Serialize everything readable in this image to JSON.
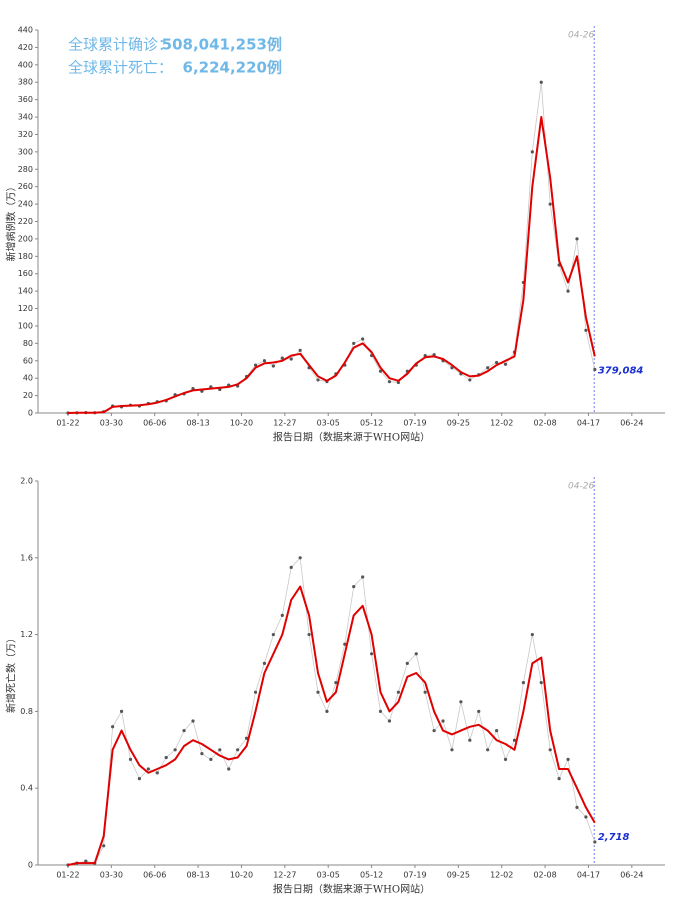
{
  "chart_data": [
    {
      "type": "line",
      "summary": [
        {
          "label": "全球累计确诊：",
          "value": "508,041,253例"
        },
        {
          "label": "全球累计死亡：",
          "value": "6,224,220例"
        }
      ],
      "ylabel": "新增病例数（万）",
      "xlabel": "报告日期（数据来源于WHO网站）",
      "x": [
        0,
        14,
        28,
        42,
        56,
        70,
        84,
        98,
        112,
        126,
        140,
        154,
        168,
        182,
        196,
        210,
        224,
        238,
        252,
        266,
        280,
        294,
        308,
        322,
        336,
        350,
        364,
        378,
        392,
        406,
        420,
        434,
        448,
        462,
        476,
        490,
        504,
        518,
        532,
        546,
        560,
        574,
        588,
        602,
        616,
        630,
        644,
        658,
        672,
        686,
        700,
        714,
        728,
        742,
        756,
        770,
        784,
        798,
        812,
        826
      ],
      "series": [
        {
          "style": "points",
          "color": "#555555",
          "values": [
            0,
            0.2,
            0.4,
            0.3,
            1.5,
            8,
            7,
            9,
            8,
            11,
            13,
            14,
            21,
            22,
            28,
            25,
            30,
            27,
            32,
            31,
            42,
            55,
            60,
            54,
            63,
            62,
            72,
            52,
            38,
            36,
            45,
            55,
            80,
            85,
            66,
            48,
            36,
            35,
            48,
            55,
            66,
            67,
            60,
            52,
            45,
            38,
            44,
            52,
            58,
            56,
            70,
            150,
            300,
            380,
            240,
            170,
            140,
            200,
            95,
            50
          ]
        },
        {
          "style": "line",
          "color": "#e00000",
          "values": [
            0,
            0.2,
            0.3,
            0.2,
            1,
            7,
            8,
            8.5,
            9,
            10,
            12,
            15,
            19,
            23,
            26,
            27,
            28,
            29,
            30,
            33,
            40,
            52,
            57,
            58,
            60,
            66,
            68,
            55,
            42,
            37,
            43,
            58,
            75,
            80,
            70,
            52,
            40,
            37,
            45,
            57,
            64,
            65,
            62,
            55,
            47,
            42,
            43,
            48,
            55,
            60,
            65,
            130,
            260,
            340,
            270,
            175,
            150,
            180,
            110,
            65
          ]
        }
      ],
      "end_label": "379,084",
      "marker": {
        "x": 825,
        "label": "04-26"
      },
      "xlim": [
        -47,
        936
      ],
      "xticks": [
        {
          "value": 0,
          "label": "01-22"
        },
        {
          "value": 68,
          "label": "03-30"
        },
        {
          "value": 136,
          "label": "06-06"
        },
        {
          "value": 204,
          "label": "08-13"
        },
        {
          "value": 272,
          "label": "10-20"
        },
        {
          "value": 340,
          "label": "12-27"
        },
        {
          "value": 408,
          "label": "03-05"
        },
        {
          "value": 476,
          "label": "05-12"
        },
        {
          "value": 544,
          "label": "07-19"
        },
        {
          "value": 612,
          "label": "09-25"
        },
        {
          "value": 680,
          "label": "12-02"
        },
        {
          "value": 748,
          "label": "02-08"
        },
        {
          "value": 816,
          "label": "04-17"
        },
        {
          "value": 884,
          "label": "06-24"
        }
      ],
      "ylim": [
        0,
        440
      ],
      "yticks": [
        0,
        20,
        40,
        60,
        80,
        100,
        120,
        140,
        160,
        180,
        200,
        220,
        240,
        260,
        280,
        300,
        320,
        340,
        360,
        380,
        400,
        420,
        440
      ]
    },
    {
      "type": "line",
      "ylabel": "新增死亡数（万）",
      "xlabel": "报告日期（数据来源于WHO网站）",
      "x": [
        0,
        14,
        28,
        42,
        56,
        70,
        84,
        98,
        112,
        126,
        140,
        154,
        168,
        182,
        196,
        210,
        224,
        238,
        252,
        266,
        280,
        294,
        308,
        322,
        336,
        350,
        364,
        378,
        392,
        406,
        420,
        434,
        448,
        462,
        476,
        490,
        504,
        518,
        532,
        546,
        560,
        574,
        588,
        602,
        616,
        630,
        644,
        658,
        672,
        686,
        700,
        714,
        728,
        742,
        756,
        770,
        784,
        798,
        812,
        826
      ],
      "series": [
        {
          "style": "points",
          "color": "#555555",
          "values": [
            0,
            0.01,
            0.02,
            0.01,
            0.1,
            0.72,
            0.8,
            0.55,
            0.45,
            0.5,
            0.48,
            0.56,
            0.6,
            0.7,
            0.75,
            0.58,
            0.55,
            0.6,
            0.5,
            0.6,
            0.66,
            0.9,
            1.05,
            1.2,
            1.3,
            1.55,
            1.6,
            1.2,
            0.9,
            0.8,
            0.95,
            1.15,
            1.45,
            1.5,
            1.1,
            0.8,
            0.75,
            0.9,
            1.05,
            1.1,
            0.9,
            0.7,
            0.75,
            0.6,
            0.85,
            0.65,
            0.8,
            0.6,
            0.7,
            0.55,
            0.65,
            0.95,
            1.2,
            0.95,
            0.6,
            0.45,
            0.55,
            0.3,
            0.25,
            0.12
          ]
        },
        {
          "style": "line",
          "color": "#e00000",
          "values": [
            0,
            0.01,
            0.01,
            0.01,
            0.15,
            0.6,
            0.7,
            0.6,
            0.52,
            0.48,
            0.5,
            0.52,
            0.55,
            0.62,
            0.65,
            0.63,
            0.6,
            0.57,
            0.55,
            0.56,
            0.62,
            0.8,
            1.0,
            1.1,
            1.2,
            1.38,
            1.45,
            1.3,
            1.0,
            0.85,
            0.9,
            1.1,
            1.3,
            1.35,
            1.2,
            0.9,
            0.8,
            0.85,
            0.98,
            1.0,
            0.95,
            0.8,
            0.7,
            0.68,
            0.7,
            0.72,
            0.73,
            0.7,
            0.65,
            0.63,
            0.6,
            0.8,
            1.05,
            1.08,
            0.7,
            0.5,
            0.5,
            0.4,
            0.3,
            0.22
          ]
        }
      ],
      "end_label": "2,718",
      "marker": {
        "x": 825,
        "label": "04-26"
      },
      "xlim": [
        -47,
        936
      ],
      "xticks": [
        {
          "value": 0,
          "label": "01-22"
        },
        {
          "value": 68,
          "label": "03-30"
        },
        {
          "value": 136,
          "label": "06-06"
        },
        {
          "value": 204,
          "label": "08-13"
        },
        {
          "value": 272,
          "label": "10-20"
        },
        {
          "value": 340,
          "label": "12-27"
        },
        {
          "value": 408,
          "label": "03-05"
        },
        {
          "value": 476,
          "label": "05-12"
        },
        {
          "value": 544,
          "label": "07-19"
        },
        {
          "value": 612,
          "label": "09-25"
        },
        {
          "value": 680,
          "label": "12-02"
        },
        {
          "value": 748,
          "label": "02-08"
        },
        {
          "value": 816,
          "label": "04-17"
        },
        {
          "value": 884,
          "label": "06-24"
        }
      ],
      "ylim": [
        0,
        2
      ],
      "yticks": [
        0,
        0.4,
        0.8,
        1.2,
        1.6,
        {
          "value": 2,
          "label": "2.0"
        }
      ]
    }
  ]
}
